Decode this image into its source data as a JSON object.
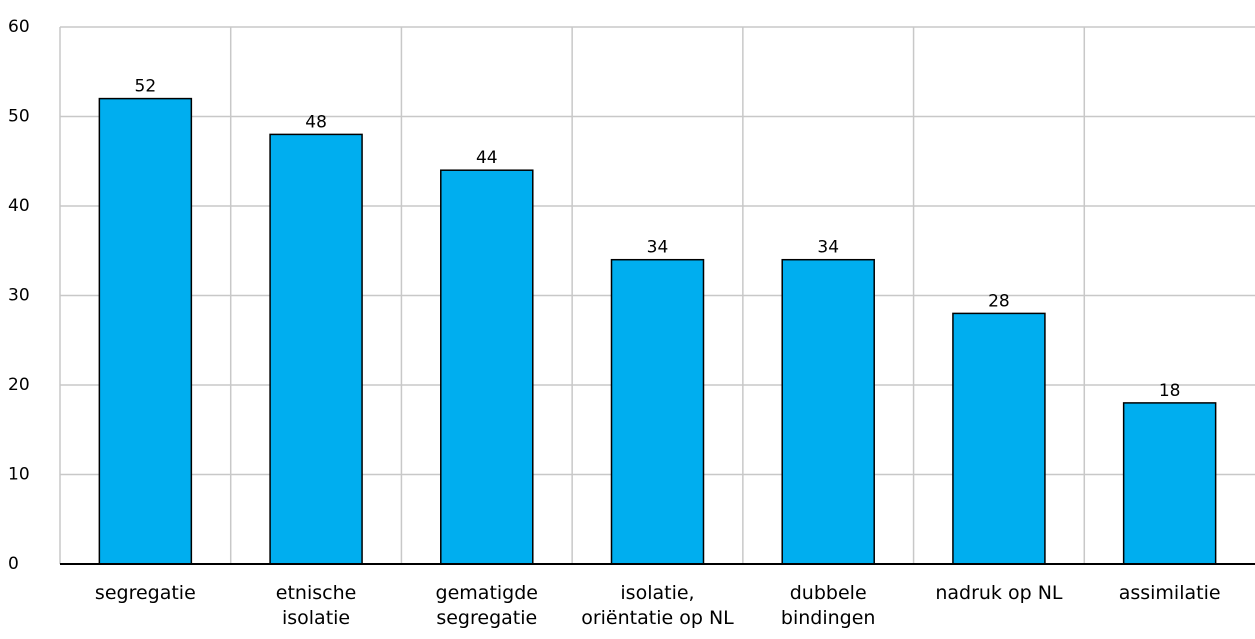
{
  "chart_data": {
    "type": "bar",
    "categories": [
      "segregatie",
      "etnische\nisolatie",
      "gematigde\nsegregatie",
      "isolatie,\noriëntatie op NL",
      "dubbele\nbindingen",
      "nadruk op NL",
      "assimilatie"
    ],
    "values": [
      52,
      48,
      44,
      34,
      34,
      28,
      18
    ],
    "color": "#00aeef",
    "ylim": [
      0,
      60
    ],
    "yticks": [
      0,
      10,
      20,
      30,
      40,
      50,
      60
    ],
    "grid": true
  }
}
